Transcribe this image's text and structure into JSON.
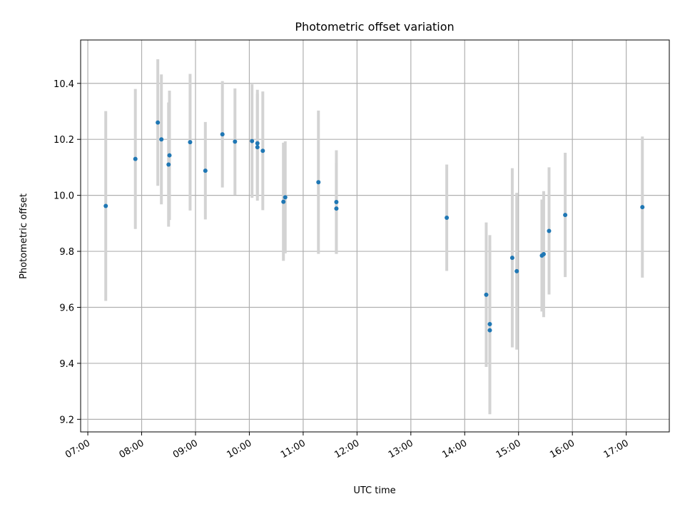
{
  "chart_data": {
    "type": "scatter",
    "title": "Photometric offset variation",
    "xlabel": "UTC time",
    "ylabel": "Photometric offset",
    "x_ticks": [
      "07:00",
      "08:00",
      "09:00",
      "10:00",
      "11:00",
      "12:00",
      "13:00",
      "14:00",
      "15:00",
      "16:00",
      "17:00"
    ],
    "y_ticks": [
      "9.2",
      "9.4",
      "9.6",
      "9.8",
      "10.0",
      "10.2",
      "10.4"
    ],
    "xlim": [
      "06:52",
      "17:48"
    ],
    "ylim": [
      9.155,
      10.555
    ],
    "grid": true,
    "legend": "none",
    "colors": {
      "point": "#1f77b4",
      "errorbar": "#d3d3d3",
      "grid": "#b0b0b0"
    },
    "points": [
      {
        "x": "07:20",
        "y": 9.962,
        "yerr": 0.339
      },
      {
        "x": "07:53",
        "y": 10.13,
        "yerr": 0.25
      },
      {
        "x": "08:18",
        "y": 10.26,
        "yerr": 0.226
      },
      {
        "x": "08:22",
        "y": 10.2,
        "yerr": 0.232
      },
      {
        "x": "08:30",
        "y": 10.11,
        "yerr": 0.222
      },
      {
        "x": "08:31",
        "y": 10.143,
        "yerr": 0.231
      },
      {
        "x": "08:54",
        "y": 10.19,
        "yerr": 0.244
      },
      {
        "x": "09:11",
        "y": 10.088,
        "yerr": 0.174
      },
      {
        "x": "09:30",
        "y": 10.218,
        "yerr": 0.19
      },
      {
        "x": "09:44",
        "y": 10.192,
        "yerr": 0.19
      },
      {
        "x": "10:03",
        "y": 10.194,
        "yerr": 0.203
      },
      {
        "x": "10:09",
        "y": 10.186,
        "yerr": 0.191
      },
      {
        "x": "10:09",
        "y": 10.172,
        "yerr": 0.191
      },
      {
        "x": "10:15",
        "y": 10.159,
        "yerr": 0.212
      },
      {
        "x": "10:38",
        "y": 9.977,
        "yerr": 0.211
      },
      {
        "x": "10:40",
        "y": 9.993,
        "yerr": 0.2
      },
      {
        "x": "11:17",
        "y": 10.047,
        "yerr": 0.256
      },
      {
        "x": "11:37",
        "y": 9.976,
        "yerr": 0.185
      },
      {
        "x": "11:37",
        "y": 9.953,
        "yerr": 0.162
      },
      {
        "x": "13:40",
        "y": 9.92,
        "yerr": 0.19
      },
      {
        "x": "14:24",
        "y": 9.645,
        "yerr": 0.258
      },
      {
        "x": "14:28",
        "y": 9.54,
        "yerr": 0.318
      },
      {
        "x": "14:28",
        "y": 9.518,
        "yerr": 0.3
      },
      {
        "x": "14:53",
        "y": 9.777,
        "yerr": 0.32
      },
      {
        "x": "14:58",
        "y": 9.729,
        "yerr": 0.28
      },
      {
        "x": "15:26",
        "y": 9.785,
        "yerr": 0.2
      },
      {
        "x": "15:28",
        "y": 9.79,
        "yerr": 0.225
      },
      {
        "x": "15:34",
        "y": 9.873,
        "yerr": 0.227
      },
      {
        "x": "15:52",
        "y": 9.93,
        "yerr": 0.222
      },
      {
        "x": "17:18",
        "y": 9.958,
        "yerr": 0.252
      }
    ]
  }
}
